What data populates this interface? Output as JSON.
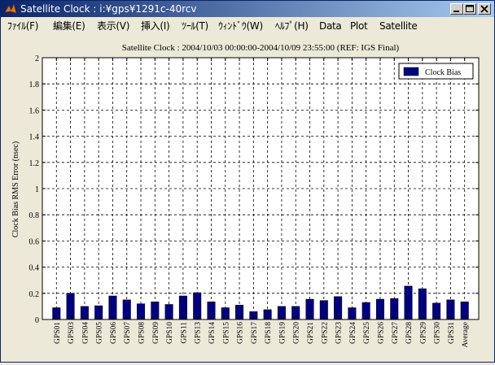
{
  "window": {
    "title": "Satellite Clock : i:¥gps¥1291c-40rcv",
    "icon": "matlab-logo-icon"
  },
  "menu": [
    "ﾌｧｲﾙ(F)",
    "編集(E)",
    "表示(V)",
    "挿入(I)",
    "ﾂｰﾙ(T)",
    "ｳｨﾝﾄﾞｳ(W)",
    "ﾍﾙﾌﾟ(H)",
    "Data",
    "Plot",
    "Satellite"
  ],
  "colors": {
    "title_bar_start": "#0a246a",
    "title_bar_end": "#a6caf0",
    "bar_fill": "#000080",
    "background": "#ece9d8"
  },
  "chart_data": {
    "type": "bar",
    "title": "Satellite Clock : 2004/10/03 00:00:00-2004/10/09 23:55:00 (REF: IGS Final)",
    "xlabel": "",
    "ylabel": "Clock Bias RMS Error (nsec)",
    "ylim": [
      0,
      2
    ],
    "yticks": [
      "0",
      "0.2",
      "0.4",
      "0.6",
      "0.8",
      "1",
      "1.2",
      "1.4",
      "1.6",
      "1.8",
      "2"
    ],
    "grid": true,
    "legend_position": "top-right",
    "categories": [
      "GPS01",
      "GPS03",
      "GPS04",
      "GPS05",
      "GPS06",
      "GPS07",
      "GPS08",
      "GPS09",
      "GPS10",
      "GPS11",
      "GPS13",
      "GPS14",
      "GPS15",
      "GPS16",
      "GPS17",
      "GPS18",
      "GPS19",
      "GPS20",
      "GPS21",
      "GPS22",
      "GPS23",
      "GPS24",
      "GPS25",
      "GPS26",
      "GPS27",
      "GPS28",
      "GPS29",
      "GPS30",
      "GPS31",
      "Average"
    ],
    "series": [
      {
        "name": "Clock Bias",
        "values": [
          0.09,
          0.2,
          0.1,
          0.105,
          0.18,
          0.15,
          0.12,
          0.135,
          0.115,
          0.18,
          0.205,
          0.135,
          0.09,
          0.11,
          0.06,
          0.075,
          0.1,
          0.1,
          0.155,
          0.145,
          0.175,
          0.09,
          0.13,
          0.155,
          0.16,
          0.255,
          0.235,
          0.125,
          0.15,
          0.135
        ]
      }
    ]
  }
}
